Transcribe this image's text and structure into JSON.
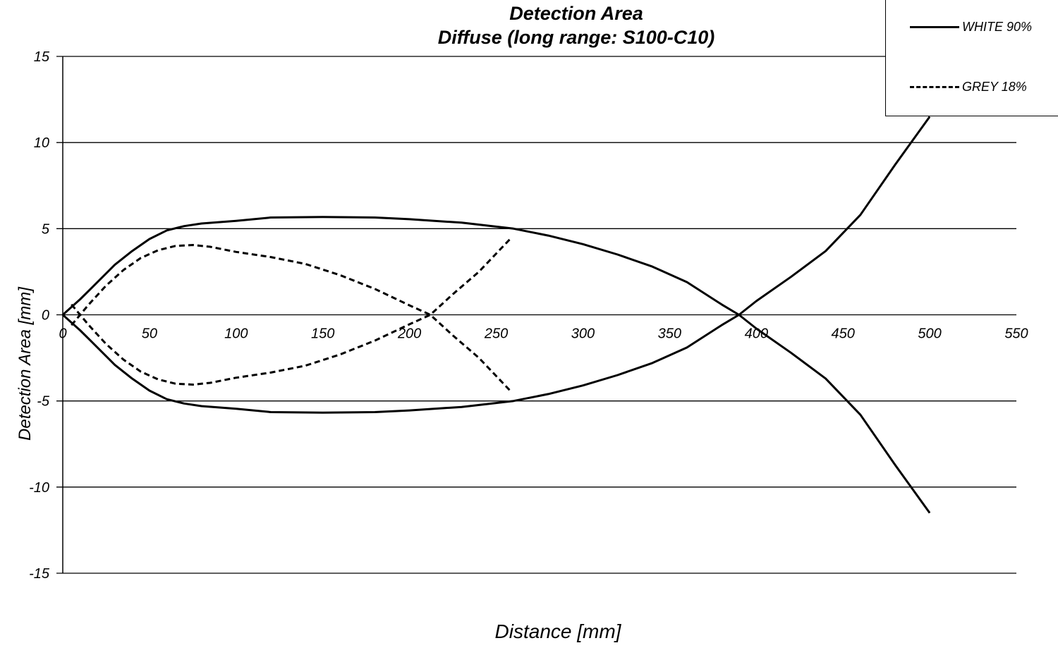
{
  "chart_data": {
    "type": "line",
    "title": "Detection Area",
    "subtitle": "Diffuse (long range: S100-C10)",
    "xlabel": "Distance [mm]",
    "ylabel": "Detection Area [mm]",
    "xlim": [
      0,
      550
    ],
    "ylim": [
      -15,
      15
    ],
    "xticks": [
      0,
      50,
      100,
      150,
      200,
      250,
      300,
      350,
      400,
      450,
      500,
      550
    ],
    "yticks": [
      -15,
      -10,
      -5,
      0,
      5,
      10,
      15
    ],
    "grid": "horizontal",
    "legend_position": "top-right",
    "series": [
      {
        "name": "WHITE 90%",
        "style": "solid",
        "color": "#000000",
        "branches": [
          {
            "x": [
              0,
              10,
              20,
              30,
              40,
              50,
              60,
              70,
              80,
              100,
              120,
              150,
              180,
              200,
              230,
              260,
              280,
              300,
              320,
              340,
              360,
              380,
              390,
              400,
              420,
              440,
              460,
              480,
              500
            ],
            "y": [
              0,
              0.9,
              1.9,
              2.9,
              3.7,
              4.4,
              4.9,
              5.15,
              5.3,
              5.45,
              5.65,
              5.68,
              5.65,
              5.55,
              5.35,
              5.0,
              4.6,
              4.1,
              3.5,
              2.8,
              1.9,
              0.6,
              0,
              -0.8,
              -2.2,
              -3.7,
              -5.8,
              -8.7,
              -11.5
            ]
          },
          {
            "x": [
              0,
              10,
              20,
              30,
              40,
              50,
              60,
              70,
              80,
              100,
              120,
              150,
              180,
              200,
              230,
              260,
              280,
              300,
              320,
              340,
              360,
              380,
              390,
              400,
              420,
              440,
              460,
              480,
              500
            ],
            "y": [
              0,
              -0.9,
              -1.9,
              -2.9,
              -3.7,
              -4.4,
              -4.9,
              -5.15,
              -5.3,
              -5.45,
              -5.65,
              -5.68,
              -5.65,
              -5.55,
              -5.35,
              -5.0,
              -4.6,
              -4.1,
              -3.5,
              -2.8,
              -1.9,
              -0.6,
              0,
              0.8,
              2.2,
              3.7,
              5.8,
              8.7,
              11.5
            ]
          }
        ]
      },
      {
        "name": "GREY 18%",
        "style": "dashed",
        "color": "#000000",
        "branches": [
          {
            "x": [
              5,
              15,
              25,
              35,
              45,
              55,
              65,
              75,
              85,
              100,
              120,
              140,
              160,
              180,
              200,
              212,
              225,
              240,
              258
            ],
            "y": [
              -0.6,
              0.6,
              1.7,
              2.6,
              3.3,
              3.75,
              4.0,
              4.05,
              3.95,
              3.65,
              3.35,
              2.95,
              2.3,
              1.5,
              0.55,
              0,
              -1.2,
              -2.5,
              -4.4
            ]
          },
          {
            "x": [
              5,
              15,
              25,
              35,
              45,
              55,
              65,
              75,
              85,
              100,
              120,
              140,
              160,
              180,
              200,
              212,
              225,
              240,
              258
            ],
            "y": [
              0.6,
              -0.6,
              -1.7,
              -2.6,
              -3.3,
              -3.75,
              -4.0,
              -4.05,
              -3.95,
              -3.65,
              -3.35,
              -2.95,
              -2.3,
              -1.5,
              -0.55,
              0,
              1.2,
              2.5,
              4.4
            ]
          }
        ]
      }
    ]
  }
}
